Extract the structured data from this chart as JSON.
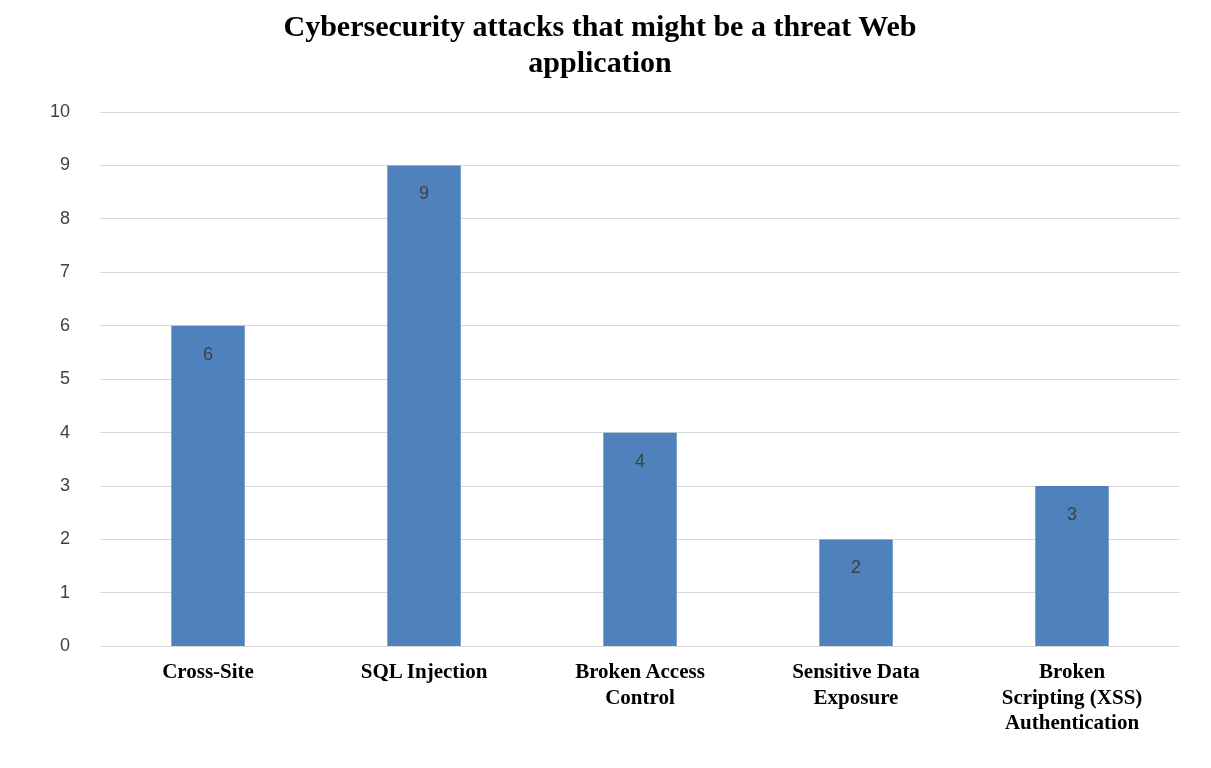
{
  "chart_data": {
    "type": "bar",
    "title": "Cybersecurity attacks that might be a threat Web application",
    "categories": [
      "Cross-Site",
      "SQL Injection",
      "Broken Access Control",
      "Sensitive Data Exposure",
      "Broken Scripting (XSS) Authentication"
    ],
    "values": [
      6,
      9,
      4,
      2,
      3
    ],
    "color": "#4f81bd",
    "ylim": [
      0,
      10
    ],
    "yticks": [
      0,
      1,
      2,
      3,
      4,
      5,
      6,
      7,
      8,
      9,
      10
    ],
    "grid": "y",
    "legend": false,
    "data_labels": true
  }
}
